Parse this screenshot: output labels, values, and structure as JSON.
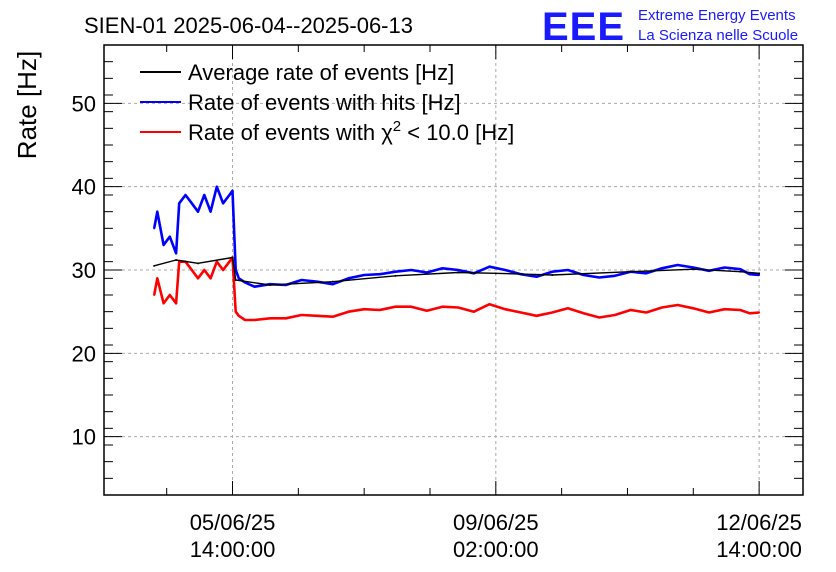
{
  "chart_data": {
    "type": "line",
    "title": "SIEN-01 2025-06-04--2025-06-13",
    "ylabel": "Rate [Hz]",
    "xlabel": "",
    "ylim": [
      3,
      57
    ],
    "yticks": [
      10,
      20,
      30,
      40,
      50
    ],
    "x_unit": "hours since 04/06/25 00:00",
    "xlim": [
      -3,
      220
    ],
    "xticks": [
      {
        "x": 38,
        "date": "05/06/25",
        "time": "14:00:00"
      },
      {
        "x": 122,
        "date": "09/06/25",
        "time": "02:00:00"
      },
      {
        "x": 206,
        "date": "12/06/25",
        "time": "14:00:00"
      }
    ],
    "grid": true,
    "legend_position": "top-left",
    "series": [
      {
        "name": "Average rate of events [Hz]",
        "color": "#000000",
        "x": [
          13,
          20,
          27,
          38,
          39,
          50,
          70,
          90,
          110,
          122,
          140,
          165,
          185,
          200,
          206
        ],
        "y": [
          30.5,
          31.2,
          30.8,
          31.5,
          28.8,
          28.2,
          28.6,
          29.3,
          29.7,
          29.6,
          29.4,
          29.8,
          30.1,
          29.8,
          29.6
        ]
      },
      {
        "name": "Rate of events with hits [Hz]",
        "color": "#0000ff",
        "x": [
          13,
          14,
          16,
          18,
          20,
          21,
          23,
          25,
          27,
          29,
          31,
          33,
          35,
          37,
          38,
          39,
          40,
          42,
          45,
          50,
          55,
          60,
          65,
          70,
          75,
          80,
          85,
          90,
          95,
          100,
          105,
          110,
          115,
          120,
          125,
          130,
          135,
          140,
          145,
          150,
          155,
          160,
          165,
          170,
          175,
          180,
          185,
          190,
          195,
          200,
          203,
          206
        ],
        "y": [
          35,
          37,
          33,
          34,
          32,
          38,
          39,
          38,
          37,
          39,
          37,
          40,
          38,
          39,
          39.5,
          30,
          29,
          28.5,
          28,
          28.3,
          28.2,
          28.8,
          28.6,
          28.3,
          29,
          29.4,
          29.5,
          29.8,
          30,
          29.7,
          30.2,
          30,
          29.6,
          30.4,
          30,
          29.5,
          29.2,
          29.8,
          30,
          29.4,
          29.1,
          29.3,
          29.8,
          29.6,
          30.2,
          30.6,
          30.3,
          29.9,
          30.3,
          30.1,
          29.5,
          29.4
        ]
      },
      {
        "name": "Rate of events with χ² < 10.0 [Hz]",
        "label_prefix": "Rate of events with ",
        "label_chi": "χ",
        "label_sup": "2",
        "label_suffix": " < 10.0 [Hz]",
        "color": "#ff0000",
        "x": [
          13,
          14,
          16,
          18,
          20,
          21,
          23,
          25,
          27,
          29,
          31,
          33,
          35,
          37,
          38,
          39,
          40,
          42,
          45,
          50,
          55,
          60,
          65,
          70,
          75,
          80,
          85,
          90,
          95,
          100,
          105,
          110,
          115,
          120,
          125,
          130,
          135,
          140,
          145,
          150,
          155,
          160,
          165,
          170,
          175,
          180,
          185,
          190,
          195,
          200,
          203,
          206
        ],
        "y": [
          27,
          29,
          26,
          27,
          26,
          31,
          31,
          30,
          29,
          30,
          29,
          31,
          30,
          31,
          31.5,
          25,
          24.5,
          24,
          24,
          24.2,
          24.2,
          24.6,
          24.5,
          24.4,
          25,
          25.3,
          25.2,
          25.6,
          25.6,
          25.1,
          25.6,
          25.5,
          25,
          25.9,
          25.3,
          24.9,
          24.5,
          24.9,
          25.4,
          24.8,
          24.3,
          24.6,
          25.2,
          24.9,
          25.5,
          25.8,
          25.4,
          24.9,
          25.3,
          25.2,
          24.8,
          24.9
        ]
      }
    ]
  },
  "logo": {
    "mark": "EEE",
    "line1": "Extreme Energy Events",
    "line2": "La Scienza nelle Scuole"
  }
}
